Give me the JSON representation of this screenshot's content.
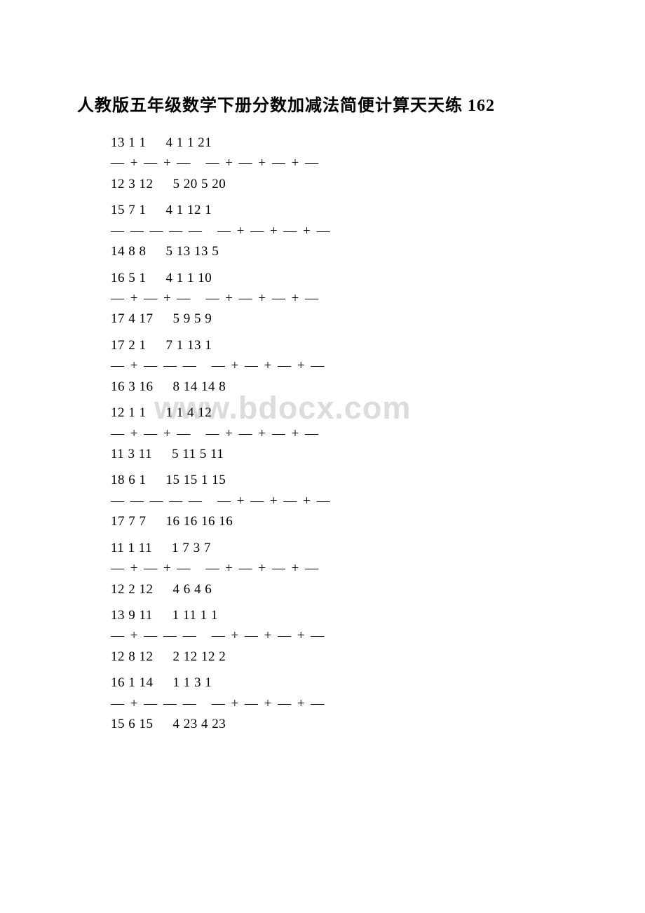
{
  "title": "人教版五年级数学下册分数加减法简便计算天天练 162",
  "watermark": "www.bdocx.com",
  "problems": [
    {
      "left_nums_top": "13 1 1",
      "right_nums_top": "4 1 1 21",
      "left_ops": "— + — + —",
      "right_ops": "— + — + — + —",
      "left_nums_bot": "12 3 12",
      "right_nums_bot": "5 20 5 20"
    },
    {
      "left_nums_top": "15 7 1",
      "right_nums_top": "4 1 12 1",
      "left_ops": "— — — — —",
      "right_ops": "— + — + — + —",
      "left_nums_bot": "14 8 8",
      "right_nums_bot": "5 13 13 5"
    },
    {
      "left_nums_top": "16 5 1",
      "right_nums_top": "4 1 1 10",
      "left_ops": "— + — + —",
      "right_ops": "— + — + — + —",
      "left_nums_bot": "17 4 17",
      "right_nums_bot": "5 9 5 9"
    },
    {
      "left_nums_top": "17 2 1",
      "right_nums_top": "7 1 13 1",
      "left_ops": "— + — — —",
      "right_ops": "— + — + — + —",
      "left_nums_bot": "16 3 16",
      "right_nums_bot": "8 14 14 8"
    },
    {
      "left_nums_top": "12 1 1",
      "right_nums_top": "1 1 4 12",
      "left_ops": "— + — + —",
      "right_ops": "— + — + — + —",
      "left_nums_bot": "11 3 11",
      "right_nums_bot": "5 11 5 11"
    },
    {
      "left_nums_top": "18 6 1",
      "right_nums_top": "15 15 1 15",
      "left_ops": "— — — — —",
      "right_ops": "— + — + — + —",
      "left_nums_bot": "17 7 7",
      "right_nums_bot": "16 16 16 16"
    },
    {
      "left_nums_top": "11 1 11",
      "right_nums_top": "1 7 3 7",
      "left_ops": "— + — + —",
      "right_ops": "— + — + — + —",
      "left_nums_bot": "12 2 12",
      "right_nums_bot": "4 6 4 6"
    },
    {
      "left_nums_top": "13 9 11",
      "right_nums_top": "1 11 1 1",
      "left_ops": "— + — — —",
      "right_ops": "— + — + — + —",
      "left_nums_bot": "12 8 12",
      "right_nums_bot": "2 12 12 2"
    },
    {
      "left_nums_top": "16 1 14",
      "right_nums_top": "1 1 3 1",
      "left_ops": "— + — — —",
      "right_ops": "— + — + — + —",
      "left_nums_bot": "15 6 15",
      "right_nums_bot": "4 23 4 23"
    }
  ]
}
